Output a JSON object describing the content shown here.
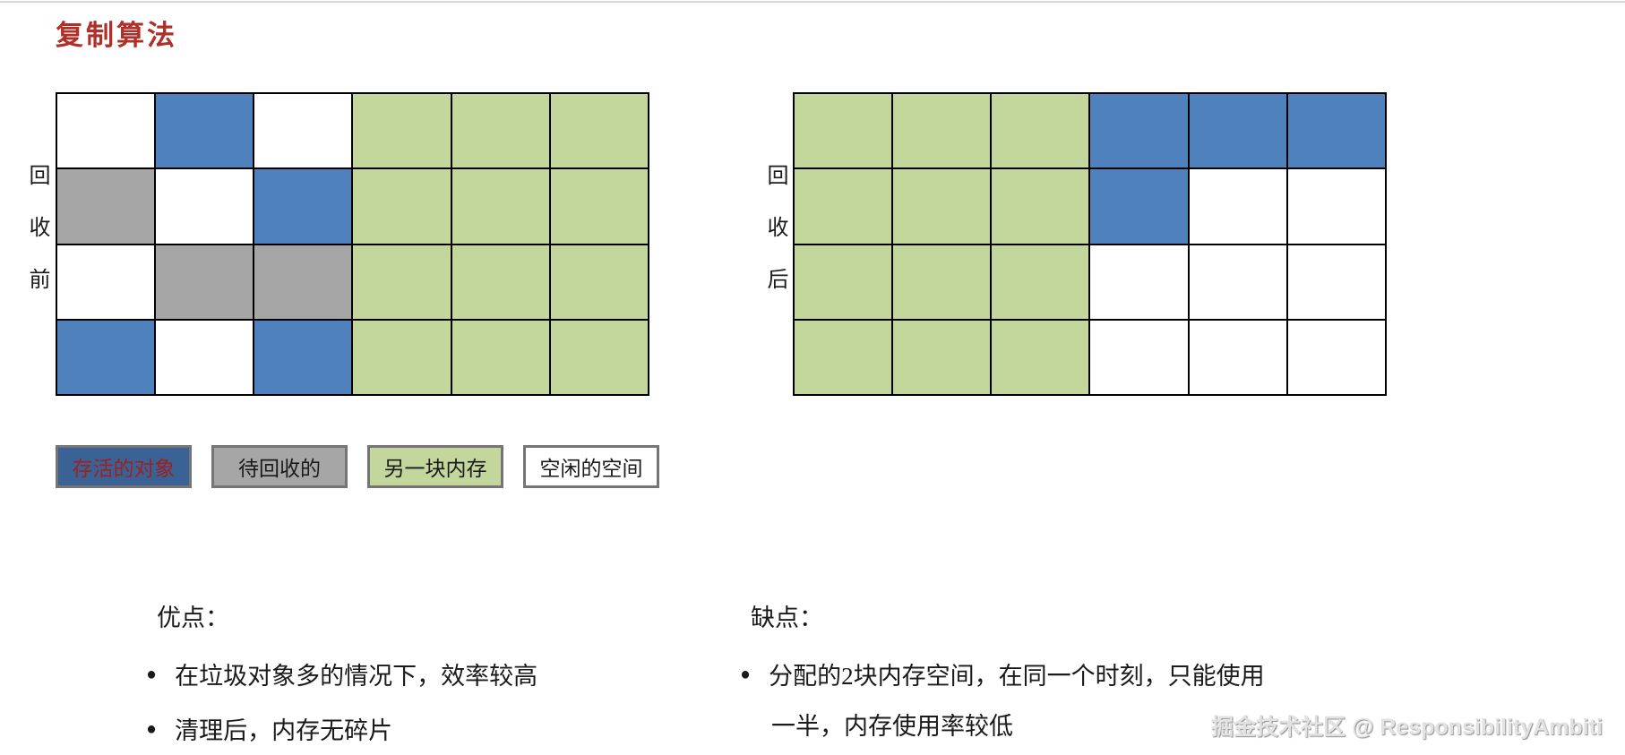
{
  "page": {
    "title": "复制算法"
  },
  "colors": {
    "title_text": "#AF3029",
    "live": "#4F81BD",
    "garbage": "#A6A6A6",
    "other": "#C3D69B",
    "free": "#FFFFFF",
    "legend_live_bg": "#3A6295",
    "legend_live_text": "#9E2020",
    "grid_line": "#000000",
    "legend_border": "#757575"
  },
  "grids": [
    {
      "label": "回收前",
      "cells": [
        [
          "free",
          "live",
          "free",
          "other",
          "other",
          "other"
        ],
        [
          "garbage",
          "free",
          "live",
          "other",
          "other",
          "other"
        ],
        [
          "free",
          "garbage",
          "garbage",
          "other",
          "other",
          "other"
        ],
        [
          "live",
          "free",
          "live",
          "other",
          "other",
          "other"
        ]
      ]
    },
    {
      "label": "回收后",
      "cells": [
        [
          "other",
          "other",
          "other",
          "live",
          "live",
          "live"
        ],
        [
          "other",
          "other",
          "other",
          "live",
          "free",
          "free"
        ],
        [
          "other",
          "other",
          "other",
          "free",
          "free",
          "free"
        ],
        [
          "other",
          "other",
          "other",
          "free",
          "free",
          "free"
        ]
      ]
    }
  ],
  "legend": [
    {
      "label": "存活的对象",
      "type": "live"
    },
    {
      "label": "待回收的",
      "type": "garbage"
    },
    {
      "label": "另一块内存",
      "type": "other"
    },
    {
      "label": "空闲的空间",
      "type": "free"
    }
  ],
  "pros": {
    "heading": "优点：",
    "bullet": "●",
    "items": [
      "在垃圾对象多的情况下，效率较高",
      "清理后，内存无碎片"
    ]
  },
  "cons": {
    "heading": "缺点：",
    "bullet": "●",
    "lines": [
      "分配的2块内存空间，在同一个时刻，只能使用",
      "一半，内存使用率较低"
    ]
  },
  "watermark": "掘金技术社区 @ ResponsibilityAmbiti"
}
